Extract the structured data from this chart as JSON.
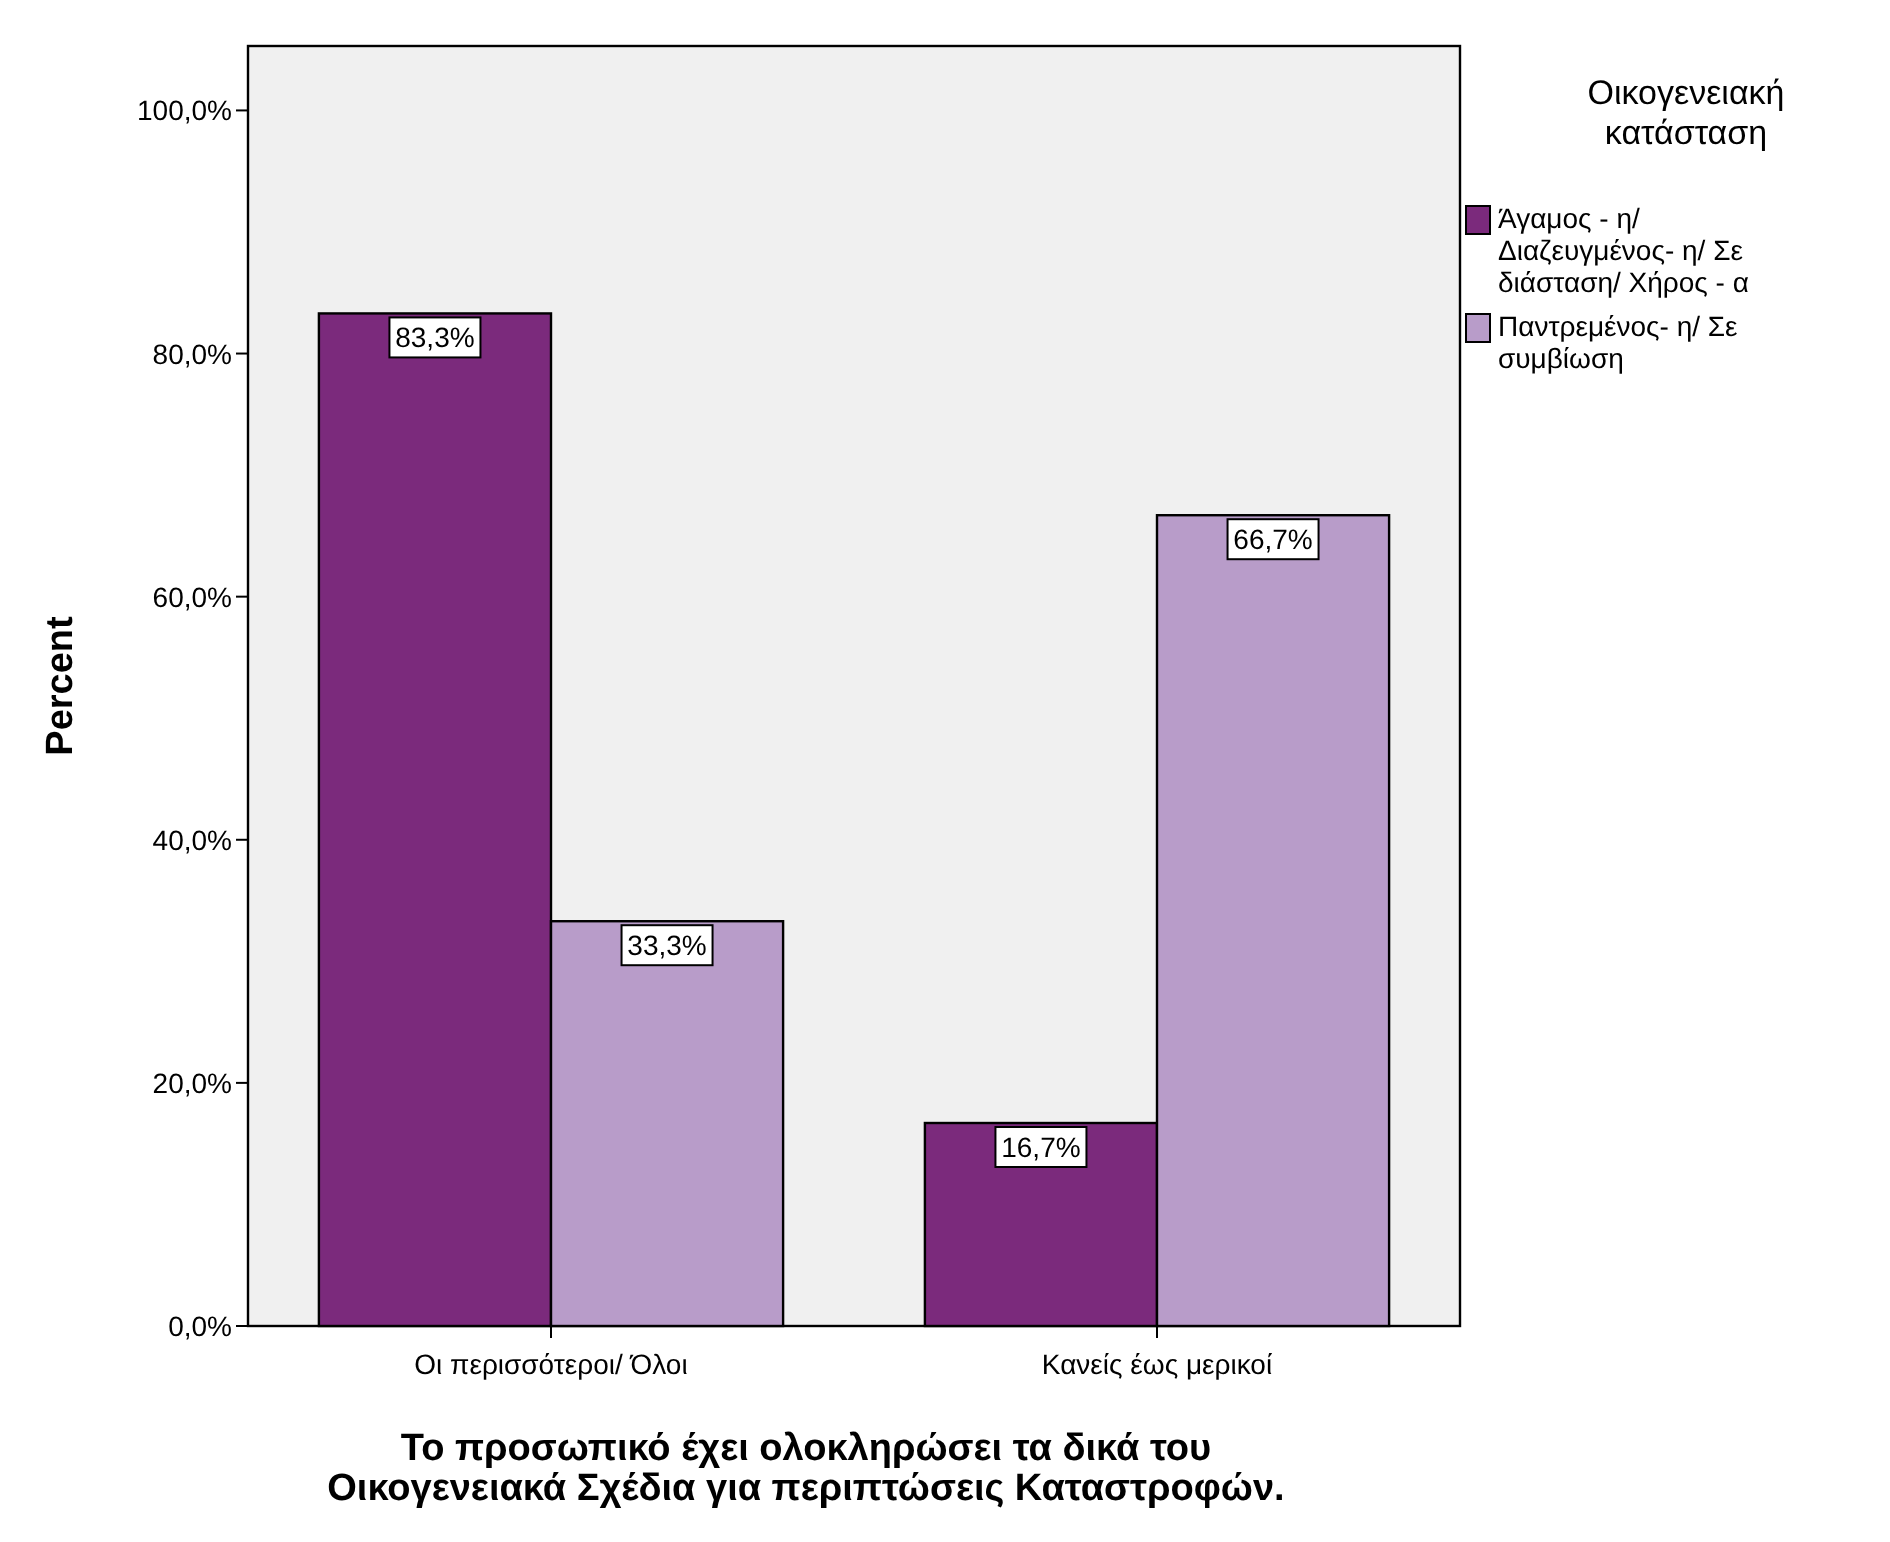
{
  "chart_data": {
    "type": "bar",
    "xlabel": "Το προσωπικό έχει ολοκληρώσει τα δικά του Οικογενειακά Σχέδια για περιπτώσεις Καταστροφών.",
    "ylabel": "Percent",
    "legend_title": "Οικογενειακή κατάσταση",
    "categories": [
      "Οι περισσότεροι/ Όλοι",
      "Κανείς έως μερικοί"
    ],
    "series": [
      {
        "name": "Άγαμος - η/ Διαζευγμένος- η/ Σε διάσταση/ Χήρος - α",
        "color": "#7b2a7c",
        "values": [
          83.3,
          16.7
        ],
        "value_labels": [
          "83,3%",
          "16,7%"
        ]
      },
      {
        "name": "Παντρεμένος- η/ Σε συμβίωση",
        "color": "#b89cc9",
        "values": [
          33.3,
          66.7
        ],
        "value_labels": [
          "33,3%",
          "66,7%"
        ]
      }
    ],
    "ylim": [
      0,
      105.3
    ],
    "yticks": [
      {
        "value": 0,
        "label": "0,0%"
      },
      {
        "value": 20,
        "label": "20,0%"
      },
      {
        "value": 40,
        "label": "40,0%"
      },
      {
        "value": 60,
        "label": "60,0%"
      },
      {
        "value": 80,
        "label": "80,0%"
      },
      {
        "value": 100,
        "label": "100,0%"
      }
    ],
    "grid": false,
    "legend": "top right"
  }
}
